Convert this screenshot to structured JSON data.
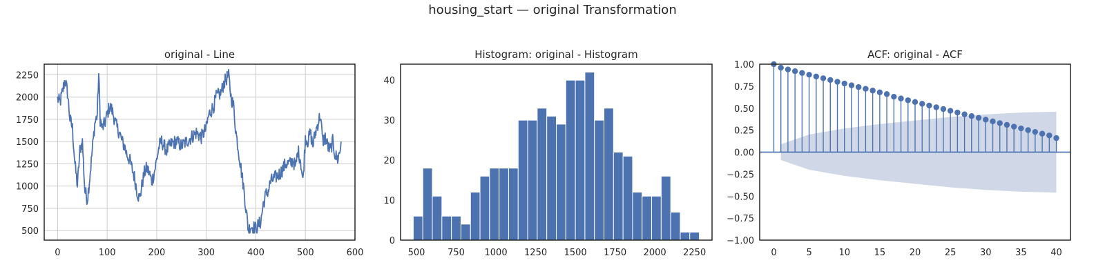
{
  "suptitle": "housing_start — original Transformation",
  "colors": {
    "series": "#4c72b0",
    "band": "#d0d8e8",
    "grid": "#cccccc",
    "frame": "#262626"
  },
  "chart_data": [
    {
      "type": "line",
      "title": "original - Line",
      "xlabel": "",
      "ylabel": "",
      "grid": true,
      "xlim": [
        -27,
        600
      ],
      "ylim": [
        392,
        2370
      ],
      "xticks": [
        0,
        100,
        200,
        300,
        400,
        500,
        600
      ],
      "yticks": [
        500,
        750,
        1000,
        1250,
        1500,
        1750,
        2000,
        2250
      ],
      "anchors": [
        [
          0,
          1980
        ],
        [
          5,
          1940
        ],
        [
          10,
          2060
        ],
        [
          15,
          2200
        ],
        [
          20,
          2050
        ],
        [
          25,
          1750
        ],
        [
          30,
          1650
        ],
        [
          35,
          1250
        ],
        [
          40,
          1000
        ],
        [
          45,
          1400
        ],
        [
          50,
          1500
        ],
        [
          55,
          950
        ],
        [
          60,
          850
        ],
        [
          65,
          1100
        ],
        [
          70,
          1400
        ],
        [
          75,
          1700
        ],
        [
          80,
          1800
        ],
        [
          83,
          2260
        ],
        [
          86,
          1750
        ],
        [
          90,
          1650
        ],
        [
          95,
          1700
        ],
        [
          100,
          1800
        ],
        [
          105,
          1900
        ],
        [
          110,
          1850
        ],
        [
          115,
          1750
        ],
        [
          120,
          1650
        ],
        [
          125,
          1600
        ],
        [
          130,
          1500
        ],
        [
          135,
          1450
        ],
        [
          140,
          1350
        ],
        [
          145,
          1300
        ],
        [
          150,
          1200
        ],
        [
          155,
          1100
        ],
        [
          160,
          950
        ],
        [
          165,
          850
        ],
        [
          170,
          1000
        ],
        [
          175,
          1150
        ],
        [
          180,
          1200
        ],
        [
          185,
          1150
        ],
        [
          190,
          1050
        ],
        [
          195,
          1150
        ],
        [
          200,
          1300
        ],
        [
          205,
          1450
        ],
        [
          210,
          1500
        ],
        [
          215,
          1450
        ],
        [
          220,
          1400
        ],
        [
          230,
          1480
        ],
        [
          240,
          1500
        ],
        [
          250,
          1450
        ],
        [
          260,
          1500
        ],
        [
          270,
          1550
        ],
        [
          280,
          1600
        ],
        [
          290,
          1550
        ],
        [
          300,
          1650
        ],
        [
          305,
          1800
        ],
        [
          310,
          1850
        ],
        [
          315,
          1900
        ],
        [
          320,
          2000
        ],
        [
          330,
          2050
        ],
        [
          335,
          2150
        ],
        [
          340,
          2200
        ],
        [
          345,
          2250
        ],
        [
          350,
          2000
        ],
        [
          355,
          1900
        ],
        [
          360,
          1600
        ],
        [
          365,
          1400
        ],
        [
          370,
          1200
        ],
        [
          375,
          1000
        ],
        [
          380,
          750
        ],
        [
          385,
          500
        ],
        [
          390,
          550
        ],
        [
          400,
          520
        ],
        [
          410,
          600
        ],
        [
          415,
          800
        ],
        [
          420,
          900
        ],
        [
          425,
          950
        ],
        [
          430,
          1050
        ],
        [
          440,
          1100
        ],
        [
          450,
          1150
        ],
        [
          460,
          1250
        ],
        [
          470,
          1250
        ],
        [
          475,
          1300
        ],
        [
          480,
          1200
        ],
        [
          485,
          1400
        ],
        [
          490,
          1300
        ],
        [
          495,
          1050
        ],
        [
          500,
          1550
        ],
        [
          505,
          1500
        ],
        [
          510,
          1600
        ],
        [
          515,
          1450
        ],
        [
          520,
          1600
        ],
        [
          525,
          1700
        ],
        [
          530,
          1800
        ],
        [
          535,
          1500
        ],
        [
          540,
          1550
        ],
        [
          545,
          1450
        ],
        [
          550,
          1400
        ],
        [
          555,
          1500
        ],
        [
          560,
          1350
        ],
        [
          565,
          1300
        ],
        [
          570,
          1400
        ],
        [
          572,
          1500
        ]
      ]
    },
    {
      "type": "bar",
      "title": "Histogram: original - Histogram",
      "xlabel": "",
      "ylabel": "",
      "grid": false,
      "xlim": [
        400,
        2360
      ],
      "ylim": [
        0,
        44
      ],
      "xticks": [
        500,
        750,
        1000,
        1250,
        1500,
        1750,
        2000,
        2250
      ],
      "yticks": [
        0,
        10,
        20,
        30,
        40
      ],
      "bin_start": 480,
      "bin_width": 60,
      "values": [
        6,
        18,
        11,
        6,
        6,
        4,
        12,
        16,
        18,
        18,
        18,
        30,
        30,
        33,
        31,
        29,
        40,
        40,
        42,
        30,
        33,
        22,
        21,
        12,
        11,
        11,
        16,
        7,
        2,
        2
      ]
    },
    {
      "type": "stem",
      "title": "ACF: original - ACF",
      "xlabel": "",
      "ylabel": "",
      "grid": false,
      "xlim": [
        -2,
        42
      ],
      "ylim": [
        -1.0,
        1.0
      ],
      "xticks": [
        0,
        5,
        10,
        15,
        20,
        25,
        30,
        35,
        40
      ],
      "yticks": [
        -1.0,
        -0.75,
        -0.5,
        -0.25,
        0.0,
        0.25,
        0.5,
        0.75,
        1.0
      ],
      "ytick_labels": [
        "−1.00",
        "−0.75",
        "−0.50",
        "−0.25",
        "0.00",
        "0.25",
        "0.50",
        "0.75",
        "1.00"
      ],
      "lags": [
        0,
        1,
        2,
        3,
        4,
        5,
        6,
        7,
        8,
        9,
        10,
        11,
        12,
        13,
        14,
        15,
        16,
        17,
        18,
        19,
        20,
        21,
        22,
        23,
        24,
        25,
        26,
        27,
        28,
        29,
        30,
        31,
        32,
        33,
        34,
        35,
        36,
        37,
        38,
        39,
        40
      ],
      "values": [
        1.0,
        0.96,
        0.94,
        0.92,
        0.9,
        0.88,
        0.86,
        0.84,
        0.82,
        0.8,
        0.78,
        0.76,
        0.74,
        0.72,
        0.7,
        0.68,
        0.66,
        0.63,
        0.61,
        0.59,
        0.57,
        0.55,
        0.53,
        0.51,
        0.49,
        0.47,
        0.45,
        0.43,
        0.41,
        0.39,
        0.37,
        0.35,
        0.33,
        0.31,
        0.29,
        0.27,
        0.25,
        0.23,
        0.21,
        0.19,
        0.16
      ],
      "confidence_band": [
        [
          1,
          0.09
        ],
        [
          5,
          0.2
        ],
        [
          10,
          0.27
        ],
        [
          15,
          0.32
        ],
        [
          20,
          0.36
        ],
        [
          25,
          0.4
        ],
        [
          30,
          0.43
        ],
        [
          35,
          0.45
        ],
        [
          40,
          0.46
        ]
      ]
    }
  ]
}
